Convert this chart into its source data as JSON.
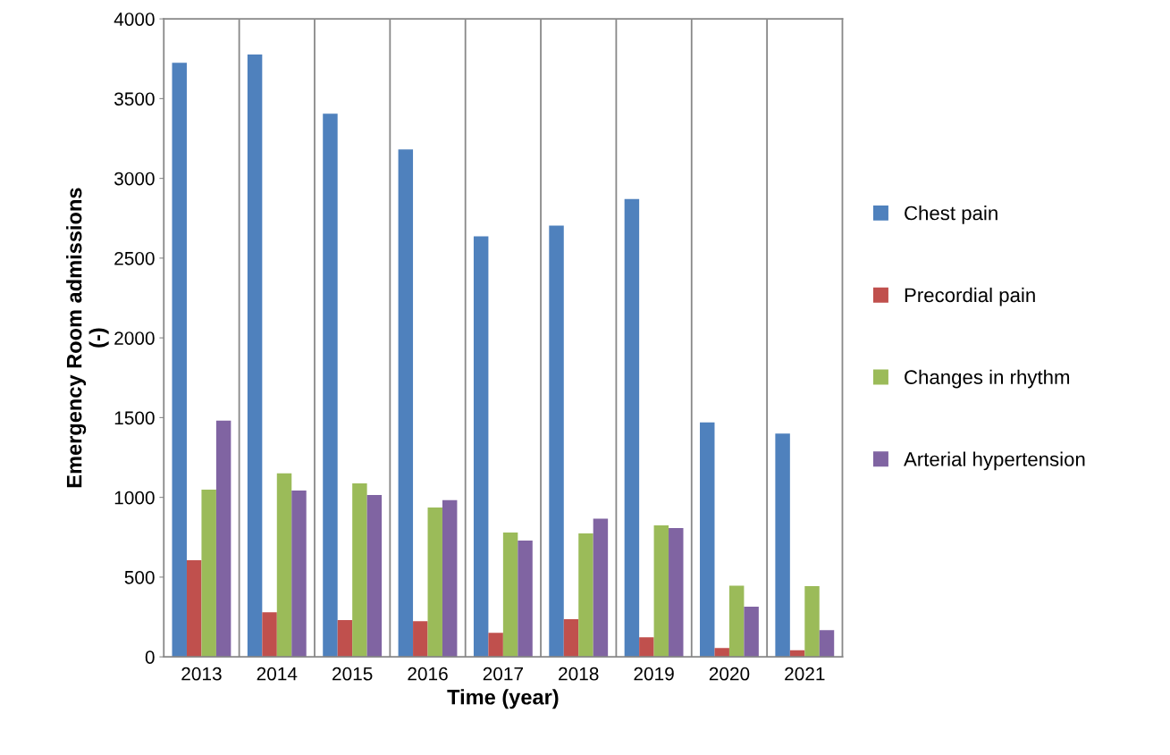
{
  "chart_data": {
    "type": "bar",
    "xlabel": "Time (year)",
    "ylabel": "Emergency Room admissions\n(-)",
    "categories": [
      "2013",
      "2014",
      "2015",
      "2016",
      "2017",
      "2018",
      "2019",
      "2020",
      "2021"
    ],
    "series": [
      {
        "name": "Chest pain",
        "color": "#4f81bd",
        "values": [
          3725,
          3776,
          3405,
          3181,
          2637,
          2704,
          2870,
          1470,
          1400
        ]
      },
      {
        "name": "Precordial pain",
        "color": "#c0504d",
        "values": [
          606,
          280,
          230,
          224,
          151,
          236,
          123,
          56,
          41
        ]
      },
      {
        "name": "Changes in rhythm",
        "color": "#9bbb59",
        "values": [
          1049,
          1150,
          1088,
          937,
          780,
          774,
          825,
          446,
          443
        ]
      },
      {
        "name": "Arterial hypertension",
        "color": "#8064a2",
        "values": [
          1481,
          1043,
          1015,
          982,
          729,
          866,
          808,
          314,
          168
        ]
      }
    ],
    "ylim": [
      0,
      4000
    ],
    "yticks": [
      0,
      500,
      1000,
      1500,
      2000,
      2500,
      3000,
      3500,
      4000
    ],
    "grid": "x",
    "legend": "right"
  }
}
